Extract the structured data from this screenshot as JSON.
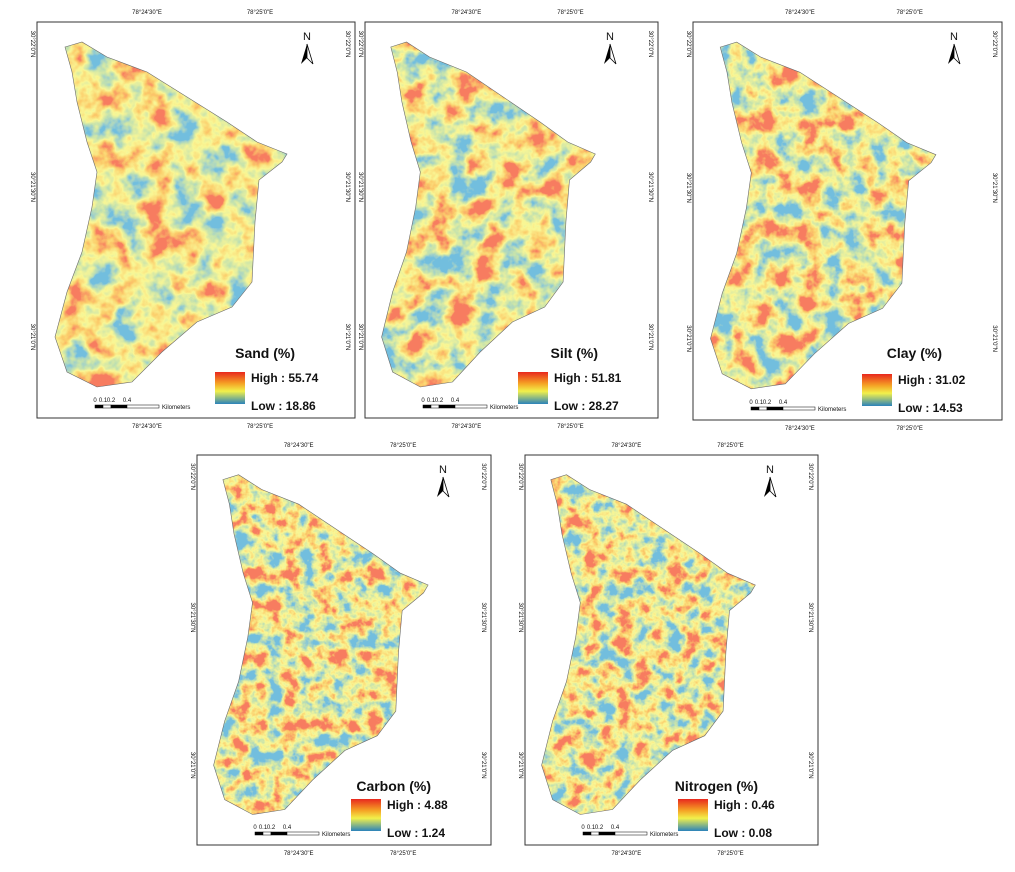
{
  "north": "N",
  "coordinates": {
    "lon": [
      "78°24'30\"E",
      "78°25'0\"E"
    ],
    "lat": [
      "30°22'0\"N",
      "30°21'30\"N",
      "30°21'0\"N"
    ]
  },
  "scale_bar": [
    "0",
    "0.1",
    "0.2",
    "0.4",
    "Kilometers"
  ],
  "panels": [
    {
      "title": "Sand (%)",
      "legend": {
        "high": "High : 55.74",
        "low": "Low : 18.86"
      }
    },
    {
      "title": "Silt (%)",
      "legend": {
        "high": "High : 51.81",
        "low": "Low : 28.27"
      }
    },
    {
      "title": "Clay (%)",
      "legend": {
        "high": "High : 31.02",
        "low": "Low : 14.53"
      }
    },
    {
      "title": "Carbon (%)",
      "legend": {
        "high": "High : 4.88",
        "low": "Low : 1.24"
      }
    },
    {
      "title": "Nitrogen (%)",
      "legend": {
        "high": "High : 0.46",
        "low": "Low : 0.08"
      }
    }
  ]
}
